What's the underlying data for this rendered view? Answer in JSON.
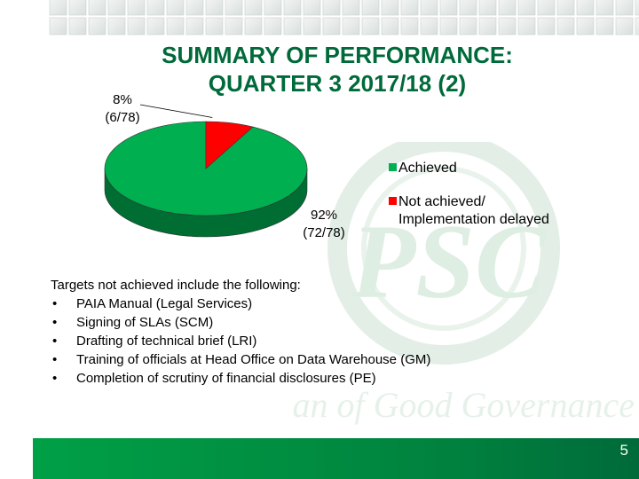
{
  "slide": {
    "title_line1": "SUMMARY OF PERFORMANCE:",
    "title_line2": "QUARTER 3 2017/18 (2)",
    "watermark_text": "Custodian of Good Governance",
    "watermark_logo": "PSC",
    "page_number": "5"
  },
  "chart_data": {
    "type": "pie",
    "title": "",
    "slices": [
      {
        "name": "Achieved",
        "value": 72,
        "total": 78,
        "percent_label": "92%",
        "count_label": "(72/78)",
        "color": "#00b050"
      },
      {
        "name": "Not achieved/ Implementation delayed",
        "value": 6,
        "total": 78,
        "percent_label": "8%",
        "count_label": "(6/78)",
        "color": "#ff0000"
      }
    ],
    "legend": {
      "position": "right",
      "items": [
        {
          "label": "Achieved",
          "color": "#00b050"
        },
        {
          "label_line1": "Not achieved/",
          "label_line2": "Implementation delayed",
          "color": "#ff0000"
        }
      ]
    }
  },
  "notes": {
    "intro": "Targets not achieved include the following:",
    "bullet_symbol": "•",
    "items": [
      "PAIA Manual (Legal Services)",
      "Signing of SLAs (SCM)",
      "Drafting of technical brief (LRI)",
      "Training of officials at Head Office on Data Warehouse (GM)",
      "Completion of scrutiny of financial disclosures (PE)"
    ]
  },
  "colors": {
    "title": "#006a3a",
    "footer": "#00813e",
    "watermark": "#dfeee3"
  }
}
